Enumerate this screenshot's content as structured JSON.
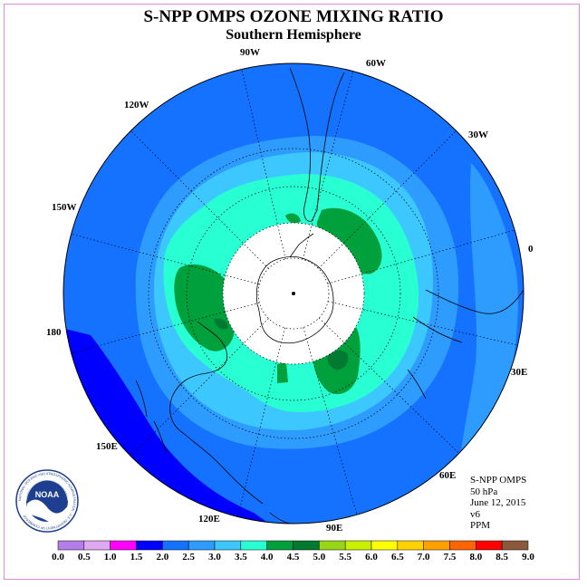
{
  "title": "S-NPP OMPS OZONE MIXING RATIO",
  "subtitle": "Southern Hemisphere",
  "longitude_labels": [
    "90W",
    "60W",
    "30W",
    "0",
    "30E",
    "60E",
    "90E",
    "120E",
    "150E",
    "180",
    "150W",
    "120W"
  ],
  "info": {
    "product": "S-NPP OMPS",
    "level": "50 hPa",
    "date": "June 12, 2015",
    "version": "v6",
    "units": "PPM"
  },
  "logo_text": "NOAA",
  "logo_ring_text": "NATIONAL OCEANIC AND ATMOSPHERIC ADMINISTRATION · U.S. DEPARTMENT OF COMMERCE",
  "colorbar": {
    "ticks": [
      "0.0",
      "0.5",
      "1.0",
      "1.5",
      "2.0",
      "2.5",
      "3.0",
      "3.5",
      "4.0",
      "4.5",
      "5.0",
      "5.5",
      "6.0",
      "6.5",
      "7.0",
      "7.5",
      "8.0",
      "8.5",
      "9.0"
    ],
    "colors": [
      "#b47ee8",
      "#e0a8f0",
      "#ff00ff",
      "#0000ff",
      "#1472ff",
      "#2e9bff",
      "#3cc8ff",
      "#28ffd2",
      "#00a03c",
      "#007a30",
      "#96d614",
      "#c8f000",
      "#ffff00",
      "#ffd200",
      "#ffa000",
      "#ff6400",
      "#ff0000",
      "#8b5a3c"
    ]
  },
  "chart_data": {
    "type": "heatmap",
    "projection": "south polar stereographic",
    "variable": "ozone mixing ratio",
    "units": "PPM",
    "pressure_level": "50 hPa",
    "date": "June 12, 2015",
    "no_data_region": "polar night cap (white disc centered on South Pole)",
    "contour_fields": [
      {
        "range": [
          1.5,
          2.0
        ],
        "region": "SW Pacific, east of Australia / around New Zealand"
      },
      {
        "range": [
          2.0,
          2.5
        ],
        "region": "outer ring, low and mid latitudes"
      },
      {
        "range": [
          2.5,
          3.0
        ],
        "region": "mid-latitude band"
      },
      {
        "range": [
          3.0,
          3.5
        ],
        "region": "band surrounding the vortex edge"
      },
      {
        "range": [
          3.5,
          4.0
        ],
        "region": "collar around the polar night cap"
      },
      {
        "range": [
          4.0,
          4.5
        ],
        "region": "patches near Drake Passage, Indian Ocean and SE of Australia"
      },
      {
        "range": [
          4.5,
          5.0
        ],
        "region": "small cores inside the maxima"
      }
    ]
  }
}
